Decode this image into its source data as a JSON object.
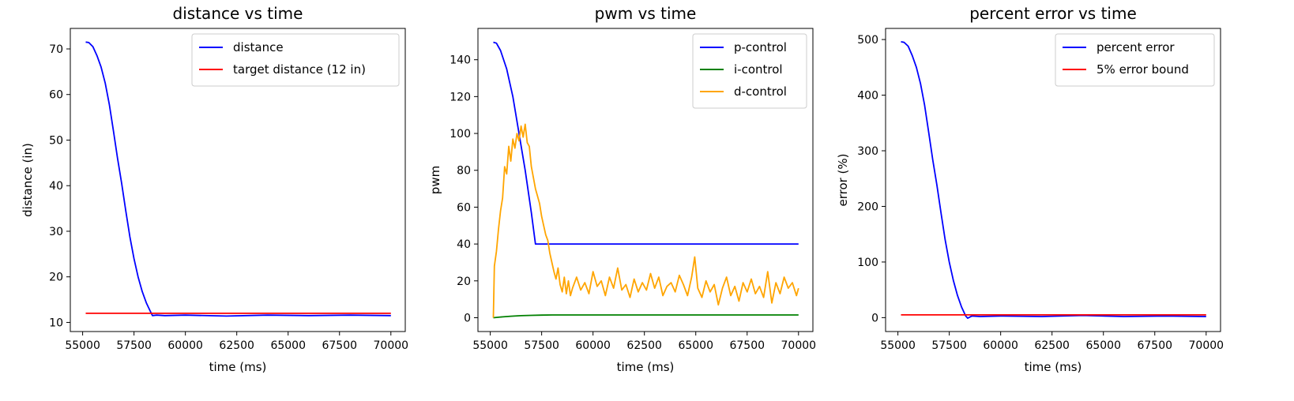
{
  "chart_data": [
    {
      "type": "line",
      "title": "distance vs time",
      "xlabel": "time (ms)",
      "ylabel": "distance (in)",
      "xlim": [
        54400,
        70700
      ],
      "ylim": [
        8,
        74.5
      ],
      "xticks": [
        55000,
        57500,
        60000,
        62500,
        65000,
        67500,
        70000
      ],
      "yticks": [
        10,
        20,
        30,
        40,
        50,
        60,
        70
      ],
      "legend_position": "top-right",
      "series": [
        {
          "name": "distance",
          "color": "#0000ff",
          "x": [
            55150,
            55300,
            55500,
            55700,
            55900,
            56100,
            56300,
            56500,
            56700,
            56900,
            57100,
            57300,
            57500,
            57700,
            57900,
            58100,
            58300,
            58400,
            58600,
            59000,
            60000,
            62000,
            64000,
            66000,
            68000,
            70000
          ],
          "y": [
            71.5,
            71.4,
            70.5,
            68.5,
            66,
            62.5,
            57.8,
            52,
            46,
            40.5,
            34.5,
            28.8,
            24,
            20,
            16.8,
            14.3,
            12.4,
            11.5,
            11.6,
            11.5,
            11.6,
            11.4,
            11.6,
            11.5,
            11.6,
            11.5
          ]
        },
        {
          "name": "target distance (12 in)",
          "color": "#ff0000",
          "x": [
            55150,
            70000
          ],
          "y": [
            12,
            12
          ]
        }
      ]
    },
    {
      "type": "line",
      "title": "pwm vs time",
      "xlabel": "time (ms)",
      "ylabel": "pwm",
      "xlim": [
        54400,
        70700
      ],
      "ylim": [
        -7.5,
        157
      ],
      "xticks": [
        55000,
        57500,
        60000,
        62500,
        65000,
        67500,
        70000
      ],
      "yticks": [
        0,
        20,
        40,
        60,
        80,
        100,
        120,
        140
      ],
      "legend_position": "top-right",
      "series": [
        {
          "name": "p-control",
          "color": "#0000ff",
          "x": [
            55150,
            55300,
            55500,
            55800,
            56100,
            56400,
            56700,
            57000,
            57200,
            70000
          ],
          "y": [
            149.5,
            149,
            145,
            135,
            120,
            100,
            80,
            57,
            40,
            40
          ]
        },
        {
          "name": "i-control",
          "color": "#008000",
          "x": [
            55150,
            55500,
            56000,
            56500,
            57000,
            57500,
            58000,
            60000,
            70000
          ],
          "y": [
            0,
            0.4,
            0.8,
            1.1,
            1.3,
            1.4,
            1.5,
            1.5,
            1.5
          ]
        },
        {
          "name": "d-control",
          "color": "#ffa500",
          "x": [
            55150,
            55200,
            55300,
            55400,
            55500,
            55600,
            55700,
            55800,
            55900,
            56000,
            56100,
            56200,
            56300,
            56400,
            56500,
            56600,
            56700,
            56800,
            56900,
            57000,
            57100,
            57200,
            57300,
            57400,
            57500,
            57600,
            57700,
            57800,
            57900,
            58000,
            58100,
            58200,
            58300,
            58400,
            58500,
            58600,
            58700,
            58800,
            58900,
            59000,
            59200,
            59400,
            59600,
            59800,
            60000,
            60200,
            60400,
            60600,
            60800,
            61000,
            61200,
            61400,
            61600,
            61800,
            62000,
            62200,
            62400,
            62600,
            62800,
            63000,
            63200,
            63400,
            63600,
            63800,
            64000,
            64200,
            64400,
            64600,
            64800,
            64950,
            65100,
            65300,
            65500,
            65700,
            65900,
            66100,
            66300,
            66500,
            66700,
            66900,
            67100,
            67300,
            67500,
            67700,
            67900,
            68100,
            68300,
            68500,
            68700,
            68900,
            69100,
            69300,
            69500,
            69700,
            69900,
            70000
          ],
          "y": [
            0,
            28,
            36,
            48,
            58,
            65,
            82,
            78,
            93,
            85,
            97,
            92,
            100,
            96,
            104,
            98,
            105,
            95,
            93,
            82,
            76,
            70,
            66,
            62,
            55,
            50,
            45,
            42,
            35,
            30,
            25,
            21,
            27,
            18,
            14,
            22,
            13,
            20,
            12,
            16,
            22,
            15,
            19,
            13,
            25,
            17,
            20,
            12,
            22,
            16,
            27,
            15,
            18,
            11,
            21,
            14,
            19,
            15,
            24,
            16,
            22,
            12,
            17,
            19,
            14,
            23,
            18,
            12,
            22,
            33,
            16,
            11,
            20,
            14,
            18,
            7,
            16,
            22,
            12,
            17,
            9,
            19,
            14,
            21,
            13,
            17,
            11,
            25,
            8,
            19,
            13,
            22,
            16,
            19,
            12,
            16
          ]
        }
      ]
    },
    {
      "type": "line",
      "title": "percent error vs time",
      "xlabel": "time (ms)",
      "ylabel": "error (%)",
      "xlim": [
        54400,
        70700
      ],
      "ylim": [
        -25,
        520
      ],
      "xticks": [
        55000,
        57500,
        60000,
        62500,
        65000,
        67500,
        70000
      ],
      "yticks": [
        0,
        100,
        200,
        300,
        400,
        500
      ],
      "legend_position": "top-right",
      "series": [
        {
          "name": "percent error",
          "color": "#0000ff",
          "x": [
            55150,
            55300,
            55500,
            55700,
            55900,
            56100,
            56300,
            56500,
            56700,
            56900,
            57100,
            57300,
            57500,
            57700,
            57900,
            58100,
            58300,
            58400,
            58600,
            59000,
            60000,
            62000,
            64000,
            66000,
            68000,
            70000
          ],
          "y": [
            496,
            495,
            488,
            471,
            450,
            421,
            382,
            333,
            283,
            238,
            188,
            140,
            100,
            67,
            40,
            19,
            3,
            -1,
            3,
            2,
            3,
            2,
            4,
            2,
            3,
            2
          ]
        },
        {
          "name": "5% error bound",
          "color": "#ff0000",
          "x": [
            55150,
            70000
          ],
          "y": [
            5,
            5
          ]
        }
      ]
    }
  ]
}
